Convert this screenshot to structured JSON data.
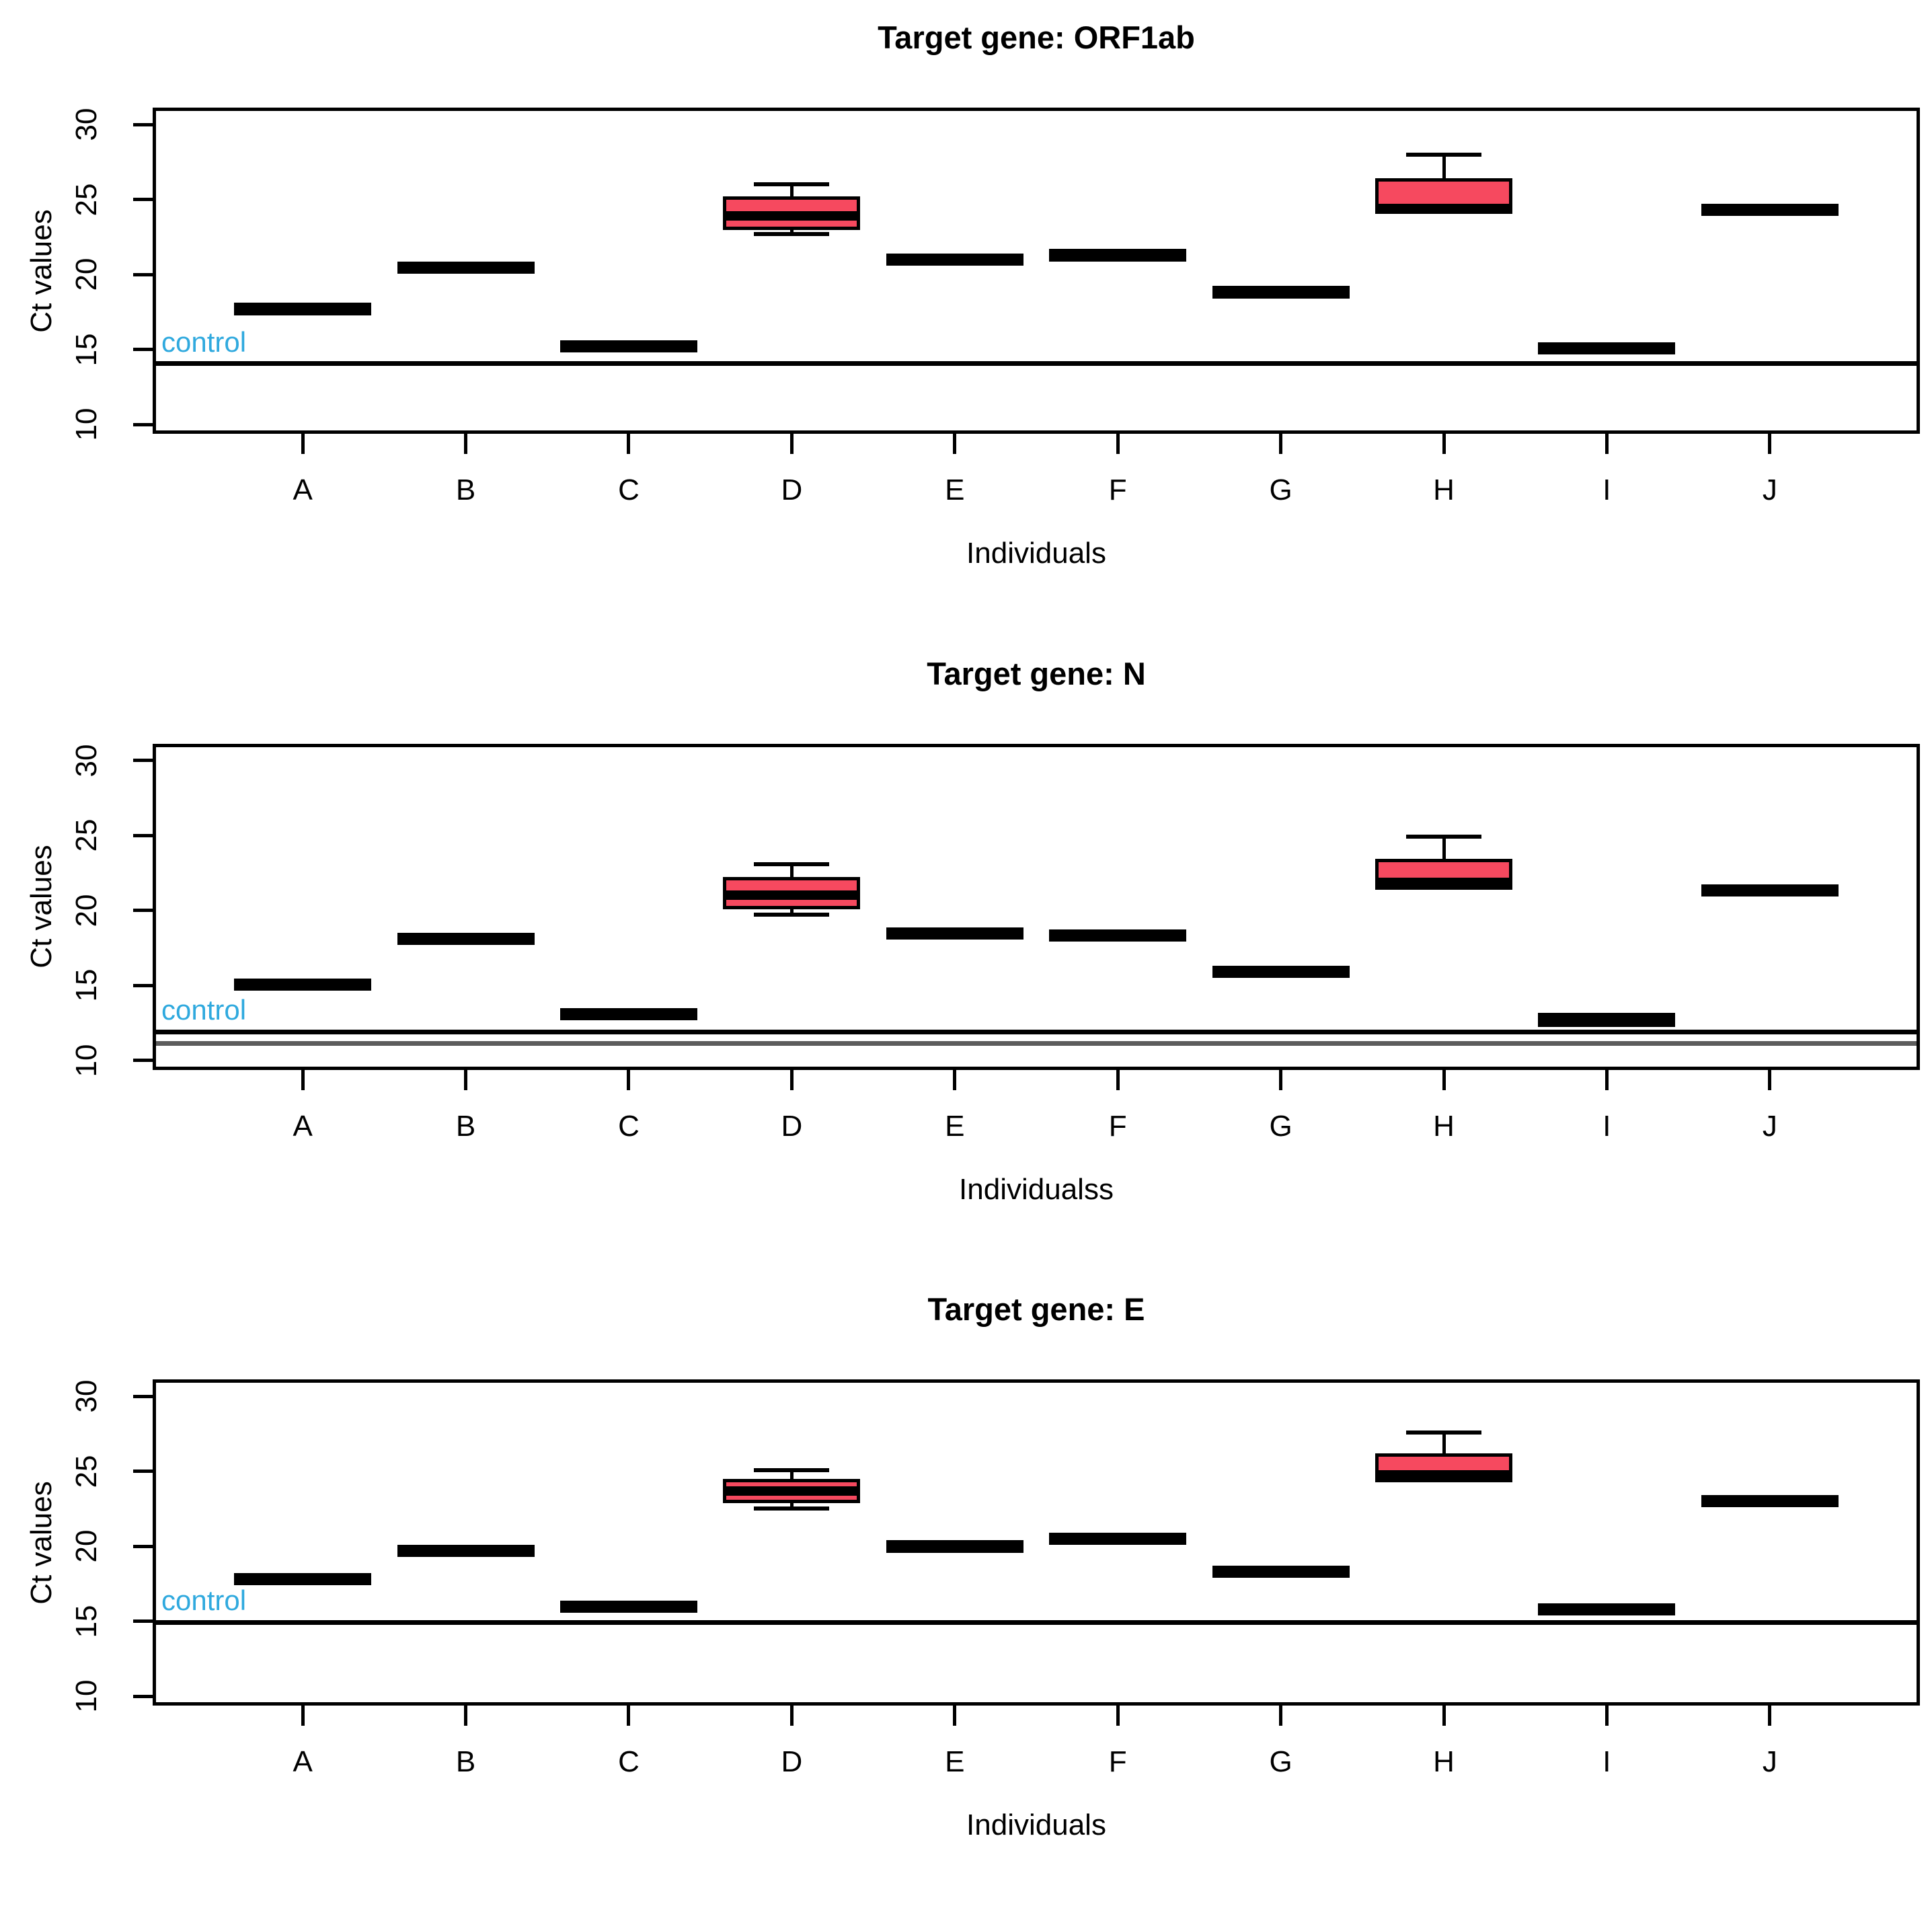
{
  "figure": {
    "background": "#ffffff",
    "frame_color": "#000000",
    "box_fill": "#f6495f",
    "box_border": "#000000",
    "control_label_color": "#2fa9de"
  },
  "chart_data": [
    {
      "type": "boxplot",
      "title": "Target gene: ORF1ab",
      "xlabel": "Individuals",
      "ylabel": "Ct values",
      "categories": [
        "A",
        "B",
        "C",
        "D",
        "E",
        "F",
        "G",
        "H",
        "I",
        "J"
      ],
      "ylim": [
        9.6,
        30.9
      ],
      "yticks": [
        10,
        15,
        20,
        25,
        30
      ],
      "grid": false,
      "legend_position": "none",
      "control_lines": [
        {
          "label": "control",
          "value": 14.05,
          "color": "#000000",
          "label_color": "#2fa9de"
        }
      ],
      "boxes": [
        {
          "cat": "A",
          "lo": 17.5,
          "q1": 17.5,
          "med": 17.7,
          "q3": 17.9,
          "hi": 17.9
        },
        {
          "cat": "B",
          "lo": 20.35,
          "q1": 20.35,
          "med": 20.5,
          "q3": 20.65,
          "hi": 20.65
        },
        {
          "cat": "C",
          "lo": 15.1,
          "q1": 15.1,
          "med": 15.25,
          "q3": 15.4,
          "hi": 15.4
        },
        {
          "cat": "D",
          "lo": 22.7,
          "q1": 23.2,
          "med": 23.9,
          "q3": 25.0,
          "hi": 26.0
        },
        {
          "cat": "E",
          "lo": 20.85,
          "q1": 20.85,
          "med": 21.0,
          "q3": 21.15,
          "hi": 21.15
        },
        {
          "cat": "F",
          "lo": 21.1,
          "q1": 21.1,
          "med": 21.3,
          "q3": 21.5,
          "hi": 21.5
        },
        {
          "cat": "G",
          "lo": 18.6,
          "q1": 18.6,
          "med": 18.8,
          "q3": 19.0,
          "hi": 19.0
        },
        {
          "cat": "H",
          "lo": 24.25,
          "q1": 24.25,
          "med": 24.4,
          "q3": 26.2,
          "hi": 28.0
        },
        {
          "cat": "I",
          "lo": 14.95,
          "q1": 14.95,
          "med": 15.1,
          "q3": 15.25,
          "hi": 15.25
        },
        {
          "cat": "J",
          "lo": 24.2,
          "q1": 24.2,
          "med": 24.35,
          "q3": 24.5,
          "hi": 24.5
        }
      ]
    },
    {
      "type": "boxplot",
      "title": "Target gene: N",
      "xlabel": "Individualss",
      "ylabel": "Ct values",
      "categories": [
        "A",
        "B",
        "C",
        "D",
        "E",
        "F",
        "G",
        "H",
        "I",
        "J"
      ],
      "ylim": [
        9.6,
        30.9
      ],
      "yticks": [
        10,
        15,
        20,
        25,
        30
      ],
      "grid": false,
      "legend_position": "none",
      "control_lines": [
        {
          "label": "control",
          "value": 11.9,
          "color": "#000000",
          "label_color": "#2fa9de"
        },
        {
          "label": "",
          "value": 11.15,
          "color": "#5c5c5c",
          "label_color": "#2fa9de"
        }
      ],
      "boxes": [
        {
          "cat": "A",
          "lo": 14.95,
          "q1": 14.95,
          "med": 15.1,
          "q3": 15.25,
          "hi": 15.25
        },
        {
          "cat": "B",
          "lo": 18.0,
          "q1": 18.0,
          "med": 18.15,
          "q3": 18.3,
          "hi": 18.3
        },
        {
          "cat": "C",
          "lo": 12.95,
          "q1": 12.95,
          "med": 13.1,
          "q3": 13.25,
          "hi": 13.25
        },
        {
          "cat": "D",
          "lo": 19.7,
          "q1": 20.3,
          "med": 21.0,
          "q3": 22.0,
          "hi": 23.1
        },
        {
          "cat": "E",
          "lo": 18.35,
          "q1": 18.35,
          "med": 18.5,
          "q3": 18.65,
          "hi": 18.65
        },
        {
          "cat": "F",
          "lo": 18.2,
          "q1": 18.2,
          "med": 18.35,
          "q3": 18.5,
          "hi": 18.5
        },
        {
          "cat": "G",
          "lo": 15.8,
          "q1": 15.8,
          "med": 15.95,
          "q3": 16.1,
          "hi": 16.1
        },
        {
          "cat": "H",
          "lo": 21.6,
          "q1": 21.6,
          "med": 21.85,
          "q3": 23.2,
          "hi": 24.9
        },
        {
          "cat": "I",
          "lo": 12.45,
          "q1": 12.45,
          "med": 12.7,
          "q3": 12.95,
          "hi": 12.95
        },
        {
          "cat": "J",
          "lo": 21.2,
          "q1": 21.2,
          "med": 21.35,
          "q3": 21.5,
          "hi": 21.5
        }
      ]
    },
    {
      "type": "boxplot",
      "title": "Target gene: E",
      "xlabel": "Individuals",
      "ylabel": "Ct values",
      "categories": [
        "A",
        "B",
        "C",
        "D",
        "E",
        "F",
        "G",
        "H",
        "I",
        "J"
      ],
      "ylim": [
        9.6,
        30.9
      ],
      "yticks": [
        10,
        15,
        20,
        25,
        30
      ],
      "grid": false,
      "legend_position": "none",
      "control_lines": [
        {
          "label": "control",
          "value": 14.95,
          "color": "#000000",
          "label_color": "#2fa9de"
        }
      ],
      "boxes": [
        {
          "cat": "A",
          "lo": 17.7,
          "q1": 17.7,
          "med": 17.85,
          "q3": 18.0,
          "hi": 18.0
        },
        {
          "cat": "B",
          "lo": 19.6,
          "q1": 19.6,
          "med": 19.75,
          "q3": 19.9,
          "hi": 19.9
        },
        {
          "cat": "C",
          "lo": 15.85,
          "q1": 15.85,
          "med": 16.0,
          "q3": 16.15,
          "hi": 16.15
        },
        {
          "cat": "D",
          "lo": 22.55,
          "q1": 23.1,
          "med": 23.7,
          "q3": 24.3,
          "hi": 25.1
        },
        {
          "cat": "E",
          "lo": 19.8,
          "q1": 19.8,
          "med": 20.0,
          "q3": 20.2,
          "hi": 20.2
        },
        {
          "cat": "F",
          "lo": 20.4,
          "q1": 20.4,
          "med": 20.55,
          "q3": 20.7,
          "hi": 20.7
        },
        {
          "cat": "G",
          "lo": 18.2,
          "q1": 18.2,
          "med": 18.35,
          "q3": 18.5,
          "hi": 18.5
        },
        {
          "cat": "H",
          "lo": 24.5,
          "q1": 24.5,
          "med": 24.75,
          "q3": 26.0,
          "hi": 27.6
        },
        {
          "cat": "I",
          "lo": 15.7,
          "q1": 15.7,
          "med": 15.85,
          "q3": 16.0,
          "hi": 16.0
        },
        {
          "cat": "J",
          "lo": 22.9,
          "q1": 22.9,
          "med": 23.05,
          "q3": 23.2,
          "hi": 23.2
        }
      ]
    }
  ]
}
